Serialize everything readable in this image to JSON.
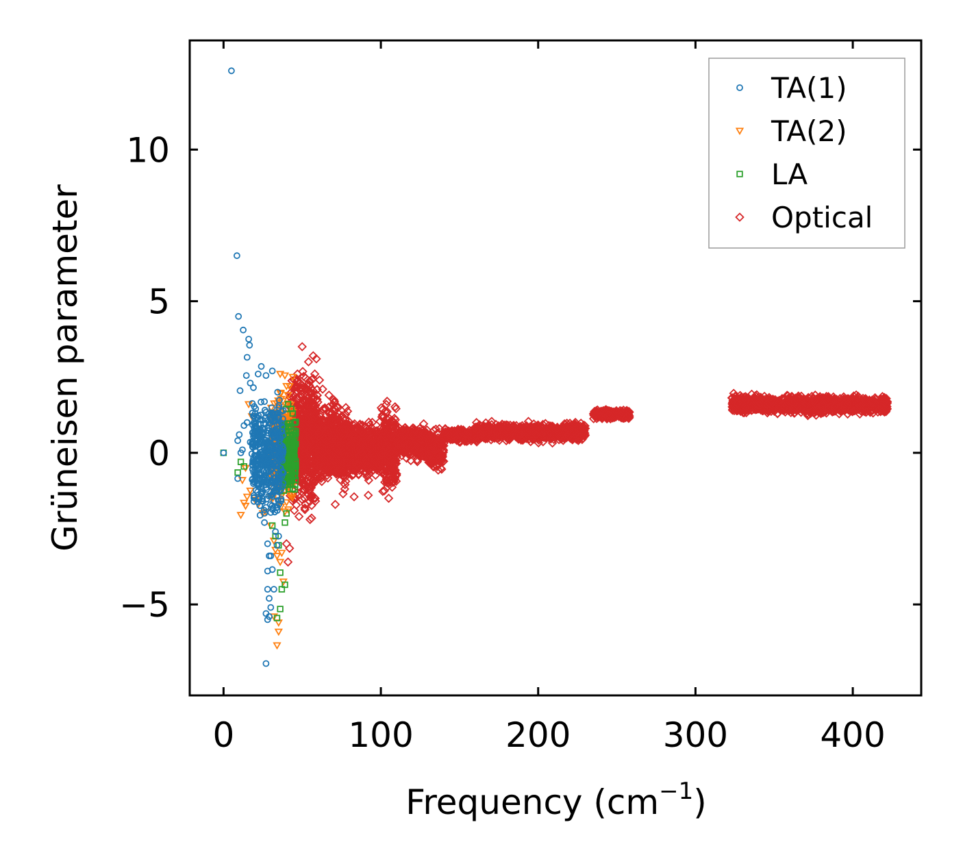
{
  "chart_data": {
    "type": "scatter",
    "title": "",
    "xlabel": "Frequency (cm",
    "xlabel_exponent": "−1",
    "xlabel_close": ")",
    "ylabel": "Grüneisen parameter",
    "xlim": [
      -21.5,
      443.5
    ],
    "ylim": [
      -8.0,
      13.6
    ],
    "x_ticks": [
      0,
      100,
      200,
      300,
      400
    ],
    "x_tick_labels": [
      "0",
      "100",
      "200",
      "300",
      "400"
    ],
    "y_ticks": [
      -5,
      0,
      5,
      10
    ],
    "y_tick_labels": [
      "−5",
      "0",
      "5",
      "10"
    ],
    "grid": false,
    "legend_position": "top-right",
    "series": [
      {
        "name": "TA(1)",
        "marker": "circle",
        "color": "#1f77b4",
        "points": [
          [
            0,
            0
          ],
          [
            5,
            12.6
          ],
          [
            8.5,
            6.5
          ],
          [
            9.5,
            4.5
          ],
          [
            10.5,
            2.05
          ],
          [
            12.5,
            4.05
          ],
          [
            15,
            3.15
          ],
          [
            16,
            3.75
          ],
          [
            16.5,
            3.55
          ],
          [
            14.5,
            2.55
          ],
          [
            17,
            2.3
          ],
          [
            19,
            2.15
          ],
          [
            22,
            2.6
          ],
          [
            24,
            2.85
          ],
          [
            27,
            2.55
          ],
          [
            31,
            2.7
          ],
          [
            9,
            0.4
          ],
          [
            10,
            0.6
          ],
          [
            11,
            0.0
          ],
          [
            13,
            0.9
          ],
          [
            15,
            1.0
          ],
          [
            17,
            0.35
          ],
          [
            18.5,
            0.2
          ],
          [
            20,
            -0.5
          ],
          [
            21,
            -0.4
          ],
          [
            9,
            -0.85
          ],
          [
            12,
            0.1
          ],
          [
            22,
            -1.0
          ],
          [
            24,
            -1.3
          ],
          [
            25,
            -1.6
          ],
          [
            26,
            -2.3
          ],
          [
            27,
            -1.8
          ],
          [
            28,
            -3.0
          ],
          [
            29,
            -3.4
          ],
          [
            28,
            -3.9
          ],
          [
            30,
            -3.4
          ],
          [
            31,
            -3.85
          ],
          [
            32,
            -4.5
          ],
          [
            28,
            -4.5
          ],
          [
            29,
            -4.8
          ],
          [
            30,
            -5.1
          ],
          [
            29,
            -5.4
          ],
          [
            28,
            -5.5
          ],
          [
            27,
            -5.3
          ],
          [
            27,
            -6.95
          ],
          [
            33,
            -2.6
          ],
          [
            34,
            -3.05
          ],
          [
            35,
            -2.75
          ]
        ],
        "band": {
          "x_range": [
            18,
            38
          ],
          "y_range": [
            -2.2,
            2.1
          ],
          "count": 420
        }
      },
      {
        "name": "TA(2)",
        "marker": "triangle-down",
        "color": "#ff7f0e",
        "points": [
          [
            11,
            -2.05
          ],
          [
            13,
            -1.65
          ],
          [
            15,
            -1.45
          ],
          [
            14,
            -1.75
          ],
          [
            17,
            -1.25
          ],
          [
            20,
            -1.55
          ],
          [
            22,
            -1.7
          ],
          [
            23,
            -1.5
          ],
          [
            12,
            -0.9
          ],
          [
            14,
            -0.5
          ],
          [
            16,
            1.6
          ],
          [
            18,
            1.2
          ],
          [
            25,
            -2.0
          ],
          [
            27,
            -1.95
          ],
          [
            30,
            -2.4
          ],
          [
            32,
            -2.9
          ],
          [
            33,
            -3.2
          ],
          [
            34,
            -3.4
          ],
          [
            35,
            -5.6
          ],
          [
            35,
            -5.9
          ],
          [
            34,
            -6.35
          ],
          [
            32,
            -5.4
          ],
          [
            36,
            -3.6
          ],
          [
            37,
            -3.3
          ],
          [
            38,
            -4.25
          ],
          [
            36,
            2.6
          ],
          [
            39,
            2.55
          ],
          [
            40,
            2.2
          ],
          [
            41,
            1.9
          ],
          [
            42,
            2.2
          ],
          [
            44,
            2.5
          ],
          [
            21,
            0.8
          ],
          [
            24,
            -0.2
          ]
        ],
        "band": {
          "x_range": [
            30,
            44
          ],
          "y_range": [
            -2.1,
            2.3
          ],
          "count": 300
        }
      },
      {
        "name": "LA",
        "marker": "square",
        "color": "#2ca02c",
        "points": [
          [
            0,
            0
          ],
          [
            9,
            -0.65
          ],
          [
            11,
            -0.3
          ],
          [
            13,
            -0.45
          ],
          [
            31,
            -2.4
          ],
          [
            33,
            -2.75
          ],
          [
            35,
            -3.05
          ],
          [
            36,
            -3.95
          ],
          [
            37,
            -4.5
          ],
          [
            39,
            -4.35
          ],
          [
            36,
            -5.15
          ],
          [
            34,
            -5.45
          ],
          [
            42,
            -1.2
          ],
          [
            43,
            1.45
          ],
          [
            44,
            1.3
          ],
          [
            41,
            1.6
          ],
          [
            40,
            -2.0
          ],
          [
            39,
            -2.3
          ]
        ],
        "band": {
          "x_range": [
            36,
            46
          ],
          "y_range": [
            -1.6,
            1.4
          ],
          "count": 220
        }
      },
      {
        "name": "Optical",
        "marker": "diamond",
        "color": "#d62728",
        "points": [
          [
            50,
            3.5
          ],
          [
            54,
            3.0
          ],
          [
            57,
            3.2
          ],
          [
            59,
            3.1
          ],
          [
            61,
            2.4
          ],
          [
            63,
            2.1
          ],
          [
            67,
            1.9
          ],
          [
            70,
            1.75
          ],
          [
            73,
            1.5
          ],
          [
            55,
            -2.2
          ],
          [
            56,
            -2.15
          ],
          [
            48,
            -2.1
          ],
          [
            45,
            -1.9
          ],
          [
            40,
            -3.0
          ],
          [
            41,
            -3.6
          ],
          [
            42,
            -3.15
          ],
          [
            46,
            -1.5
          ],
          [
            52,
            -1.7
          ],
          [
            71,
            -1.7
          ],
          [
            76,
            -1.35
          ],
          [
            83,
            -1.45
          ],
          [
            92,
            -1.4
          ],
          [
            104,
            1.7
          ],
          [
            105,
            -1.5
          ],
          [
            45,
            2.4
          ],
          [
            47,
            2.6
          ],
          [
            58,
            2.6
          ]
        ],
        "bands": [
          {
            "x_range": [
              42,
              60
            ],
            "y_range": [
              -1.9,
              2.7
            ],
            "count": 700
          },
          {
            "x_range": [
              60,
              80
            ],
            "y_range": [
              -1.2,
              1.7
            ],
            "count": 650
          },
          {
            "x_range": [
              80,
              100
            ],
            "y_range": [
              -0.9,
              1.1
            ],
            "count": 520
          },
          {
            "x_range": [
              100,
              110
            ],
            "y_range": [
              -1.4,
              1.6
            ],
            "count": 280
          },
          {
            "x_range": [
              110,
              130
            ],
            "y_range": [
              -0.3,
              1.0
            ],
            "count": 380
          },
          {
            "x_range": [
              130,
              140
            ],
            "y_range": [
              -0.7,
              0.8
            ],
            "count": 180
          },
          {
            "x_range": [
              140,
              160
            ],
            "y_range": [
              0.35,
              0.8
            ],
            "count": 260
          },
          {
            "x_range": [
              160,
              230
            ],
            "y_range": [
              0.35,
              1.0
            ],
            "count": 900
          },
          {
            "x_range": [
              235,
              258
            ],
            "y_range": [
              1.1,
              1.45
            ],
            "count": 260
          },
          {
            "x_range": [
              323,
              345
            ],
            "y_range": [
              1.3,
              1.95
            ],
            "count": 300
          },
          {
            "x_range": [
              345,
              422
            ],
            "y_range": [
              1.25,
              1.9
            ],
            "count": 900
          }
        ]
      }
    ]
  }
}
